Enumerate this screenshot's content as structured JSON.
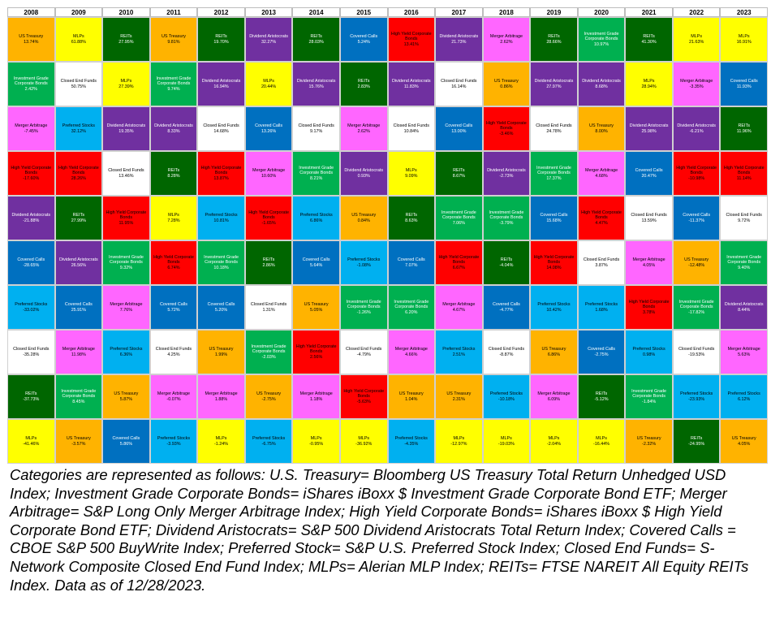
{
  "colors": {
    "US Treasury": "#FFB300",
    "MLPs": "#FFFF00",
    "REITs": "#006600",
    "Covered Calls": "#0070C0",
    "High Yield Corporate Bonds": "#FF0000",
    "Dividend Aristocrats": "#7030A0",
    "Merger Arbitrage": "#FF66FF",
    "Investment Grade Corporate Bonds": "#00B050",
    "Closed End Funds": "#FFFFFF",
    "Preferred Stocks": "#00B0F0"
  },
  "text_colors": {
    "US Treasury": "#000000",
    "MLPs": "#000000",
    "REITs": "#FFFFFF",
    "Covered Calls": "#FFFFFF",
    "High Yield Corporate Bonds": "#000000",
    "Dividend Aristocrats": "#FFFFFF",
    "Merger Arbitrage": "#000000",
    "Investment Grade Corporate Bonds": "#FFFFFF",
    "Closed End Funds": "#000000",
    "Preferred Stocks": "#000000"
  },
  "chart_data": {
    "type": "table",
    "years": [
      "2008",
      "2009",
      "2010",
      "2011",
      "2012",
      "2013",
      "2014",
      "2015",
      "2016",
      "2017",
      "2018",
      "2019",
      "2020",
      "2021",
      "2022",
      "2023"
    ],
    "columns": [
      [
        [
          "US Treasury",
          "13.74%"
        ],
        [
          "Investment Grade Corporate Bonds",
          "2.42%"
        ],
        [
          "Merger Arbitrage",
          "-7.45%"
        ],
        [
          "High Yield Corporate Bonds",
          "-17.60%"
        ],
        [
          "Dividend Aristocrats",
          "-21.88%"
        ],
        [
          "Covered Calls",
          "-28.65%"
        ],
        [
          "Preferred Stocks",
          "-33.02%"
        ],
        [
          "Closed End Funds",
          "-35.28%"
        ],
        [
          "REITs",
          "-37.73%"
        ],
        [
          "MLPs",
          "-41.46%"
        ]
      ],
      [
        [
          "MLPs",
          "61.88%"
        ],
        [
          "Closed End Funds",
          "50.75%"
        ],
        [
          "Preferred Stocks",
          "32.12%"
        ],
        [
          "High Yield Corporate Bonds",
          "28.26%"
        ],
        [
          "REITs",
          "27.99%"
        ],
        [
          "Dividend Aristocrats",
          "26.56%"
        ],
        [
          "Covered Calls",
          "25.91%"
        ],
        [
          "Merger Arbitrage",
          "11.98%"
        ],
        [
          "Investment Grade Corporate Bonds",
          "8.45%"
        ],
        [
          "US Treasury",
          "-3.57%"
        ]
      ],
      [
        [
          "REITs",
          "27.95%"
        ],
        [
          "MLPs",
          "27.39%"
        ],
        [
          "Dividend Aristocrats",
          "19.35%"
        ],
        [
          "Closed End Funds",
          "13.46%"
        ],
        [
          "High Yield Corporate Bonds",
          "11.95%"
        ],
        [
          "Investment Grade Corporate Bonds",
          "9.32%"
        ],
        [
          "Merger Arbitrage",
          "7.76%"
        ],
        [
          "Preferred Stocks",
          "6.36%"
        ],
        [
          "US Treasury",
          "5.87%"
        ],
        [
          "Covered Calls",
          "5.86%"
        ]
      ],
      [
        [
          "US Treasury",
          "9.81%"
        ],
        [
          "Investment Grade Corporate Bonds",
          "9.74%"
        ],
        [
          "Dividend Aristocrats",
          "8.33%"
        ],
        [
          "REITs",
          "8.28%"
        ],
        [
          "MLPs",
          "7.28%"
        ],
        [
          "High Yield Corporate Bonds",
          "6.74%"
        ],
        [
          "Covered Calls",
          "5.72%"
        ],
        [
          "Closed End Funds",
          "4.25%"
        ],
        [
          "Merger Arbitrage",
          "-0.07%"
        ],
        [
          "Preferred Stocks",
          "-3.93%"
        ]
      ],
      [
        [
          "REITs",
          "19.70%"
        ],
        [
          "Dividend Aristocrats",
          "16.94%"
        ],
        [
          "Closed End Funds",
          "14.68%"
        ],
        [
          "High Yield Corporate Bonds",
          "13.87%"
        ],
        [
          "Preferred Stocks",
          "10.81%"
        ],
        [
          "Investment Grade Corporate Bonds",
          "10.18%"
        ],
        [
          "Covered Calls",
          "5.20%"
        ],
        [
          "US Treasury",
          "1.99%"
        ],
        [
          "Merger Arbitrage",
          "1.88%"
        ],
        [
          "MLPs",
          "-1.24%"
        ]
      ],
      [
        [
          "Dividend Aristocrats",
          "32.27%"
        ],
        [
          "MLPs",
          "20.44%"
        ],
        [
          "Covered Calls",
          "13.26%"
        ],
        [
          "Merger Arbitrage",
          "10.60%"
        ],
        [
          "High Yield Corporate Bonds",
          "-1.65%"
        ],
        [
          "REITs",
          "2.86%"
        ],
        [
          "Closed End Funds",
          "1.31%"
        ],
        [
          "Investment Grade Corporate Bonds",
          "-2.03%"
        ],
        [
          "US Treasury",
          "-2.75%"
        ],
        [
          "Preferred Stocks",
          "-6.75%"
        ]
      ],
      [
        [
          "REITs",
          "28.03%"
        ],
        [
          "Dividend Aristocrats",
          "15.76%"
        ],
        [
          "Closed End Funds",
          "9.17%"
        ],
        [
          "Investment Grade Corporate Bonds",
          "8.21%"
        ],
        [
          "Preferred Stocks",
          "6.86%"
        ],
        [
          "Covered Calls",
          "5.64%"
        ],
        [
          "US Treasury",
          "5.05%"
        ],
        [
          "High Yield Corporate Bonds",
          "2.56%"
        ],
        [
          "Merger Arbitrage",
          "1.18%"
        ],
        [
          "MLPs",
          "-0.95%"
        ]
      ],
      [
        [
          "Covered Calls",
          "5.24%"
        ],
        [
          "REITs",
          "2.83%"
        ],
        [
          "Merger Arbitrage",
          "2.62%"
        ],
        [
          "Dividend Aristocrats",
          "0.93%"
        ],
        [
          "US Treasury",
          "0.84%"
        ],
        [
          "Preferred Stocks",
          "-1.08%"
        ],
        [
          "Investment Grade Corporate Bonds",
          "-1.26%"
        ],
        [
          "Closed End Funds",
          "-4.79%"
        ],
        [
          "High Yield Corporate Bonds",
          "-5.63%"
        ],
        [
          "MLPs",
          "-36.92%"
        ]
      ],
      [
        [
          "High Yield Corporate Bonds",
          "13.41%"
        ],
        [
          "Dividend Aristocrats",
          "11.83%"
        ],
        [
          "Closed End Funds",
          "10.84%"
        ],
        [
          "MLPs",
          "9.09%"
        ],
        [
          "REITs",
          "8.63%"
        ],
        [
          "Covered Calls",
          "7.07%"
        ],
        [
          "Investment Grade Corporate Bonds",
          "6.20%"
        ],
        [
          "Merger Arbitrage",
          "4.66%"
        ],
        [
          "US Treasury",
          "1.04%"
        ],
        [
          "Preferred Stocks",
          "-4.35%"
        ]
      ],
      [
        [
          "Dividend Aristocrats",
          "21.73%"
        ],
        [
          "Closed End Funds",
          "16.14%"
        ],
        [
          "Covered Calls",
          "13.00%"
        ],
        [
          "REITs",
          "8.67%"
        ],
        [
          "Investment Grade Corporate Bonds",
          "7.06%"
        ],
        [
          "High Yield Corporate Bonds",
          "6.67%"
        ],
        [
          "Merger Arbitrage",
          "4.67%"
        ],
        [
          "Preferred Stocks",
          "2.51%"
        ],
        [
          "US Treasury",
          "2.31%"
        ],
        [
          "MLPs",
          "-12.97%"
        ]
      ],
      [
        [
          "Merger Arbitrage",
          "2.62%"
        ],
        [
          "US Treasury",
          "0.86%"
        ],
        [
          "High Yield Corporate Bonds",
          "-3.46%"
        ],
        [
          "Dividend Aristocrats",
          "-2.73%"
        ],
        [
          "Investment Grade Corporate Bonds",
          "-3.79%"
        ],
        [
          "REITs",
          "-4.04%"
        ],
        [
          "Covered Calls",
          "-4.77%"
        ],
        [
          "Closed End Funds",
          "-8.87%"
        ],
        [
          "Preferred Stocks",
          "-10.18%"
        ],
        [
          "MLPs",
          "-19.03%"
        ]
      ],
      [
        [
          "REITs",
          "28.66%"
        ],
        [
          "Dividend Aristocrats",
          "27.97%"
        ],
        [
          "Closed End Funds",
          "24.78%"
        ],
        [
          "Investment Grade Corporate Bonds",
          "17.37%"
        ],
        [
          "Covered Calls",
          "15.68%"
        ],
        [
          "High Yield Corporate Bonds",
          "14.08%"
        ],
        [
          "Preferred Stocks",
          "10.42%"
        ],
        [
          "US Treasury",
          "6.86%"
        ],
        [
          "Merger Arbitrage",
          "6.09%"
        ],
        [
          "MLPs",
          "-2.04%"
        ]
      ],
      [
        [
          "Investment Grade Corporate Bonds",
          "10.97%"
        ],
        [
          "Dividend Aristocrats",
          "8.68%"
        ],
        [
          "US Treasury",
          "8.00%"
        ],
        [
          "Merger Arbitrage",
          "4.68%"
        ],
        [
          "High Yield Corporate Bonds",
          "4.47%"
        ],
        [
          "Closed End Funds",
          "3.87%"
        ],
        [
          "Preferred Stocks",
          "1.68%"
        ],
        [
          "Covered Calls",
          "-2.75%"
        ],
        [
          "REITs",
          "-5.12%"
        ],
        [
          "MLPs",
          "-16.44%"
        ]
      ],
      [
        [
          "REITs",
          "41.30%"
        ],
        [
          "MLPs",
          "28.94%"
        ],
        [
          "Dividend Aristocrats",
          "25.98%"
        ],
        [
          "Covered Calls",
          "20.47%"
        ],
        [
          "Closed End Funds",
          "13.59%"
        ],
        [
          "Merger Arbitrage",
          "4.05%"
        ],
        [
          "High Yield Corporate Bonds",
          "3.78%"
        ],
        [
          "Preferred Stocks",
          "0.98%"
        ],
        [
          "Investment Grade Corporate Bonds",
          "-1.84%"
        ],
        [
          "US Treasury",
          "-2.32%"
        ]
      ],
      [
        [
          "MLPs",
          "21.63%"
        ],
        [
          "Merger Arbitrage",
          "-3.35%"
        ],
        [
          "Dividend Aristocrats",
          "-6.21%"
        ],
        [
          "High Yield Corporate Bonds",
          "-10.98%"
        ],
        [
          "Covered Calls",
          "-11.37%"
        ],
        [
          "US Treasury",
          "-12.48%"
        ],
        [
          "Investment Grade Corporate Bonds",
          "-17.82%"
        ],
        [
          "Closed End Funds",
          "-19.53%"
        ],
        [
          "Preferred Stocks",
          "-23.93%"
        ],
        [
          "REITs",
          "-24.95%"
        ]
      ],
      [
        [
          "MLPs",
          "16.91%"
        ],
        [
          "Covered Calls",
          "11.93%"
        ],
        [
          "REITs",
          "11.96%"
        ],
        [
          "High Yield Corporate Bonds",
          "11.14%"
        ],
        [
          "Closed End Funds",
          "9.72%"
        ],
        [
          "Investment Grade Corporate Bonds",
          "9.40%"
        ],
        [
          "Dividend Aristocrats",
          "8.44%"
        ],
        [
          "Merger Arbitrage",
          "5.63%"
        ],
        [
          "Preferred Stocks",
          "6.12%"
        ],
        [
          "US Treasury",
          "4.05%"
        ]
      ]
    ]
  },
  "note": "Categories are represented as follows: U.S. Treasury= Bloomberg US Treasury Total Return Unhedged USD Index; Investment Grade Corporate Bonds= iShares iBoxx $ Investment Grade Corporate Bond ETF; Merger Arbitrage= S&P Long Only Merger Arbitrage Index; High Yield Corporate Bonds= iShares iBoxx $ High Yield Corporate Bond ETF; Dividend Aristocrats= S&P 500 Dividend Aristocrats Total Return Index; Covered Calls = CBOE S&P 500 BuyWrite Index; Preferred Stock= S&P U.S. Preferred Stock Index; Closed End Funds= S-Network Composite Closed End Fund Index; MLPs= Alerian MLP Index; REITs= FTSE NAREIT All Equity REITs Index. Data as of 12/28/2023."
}
